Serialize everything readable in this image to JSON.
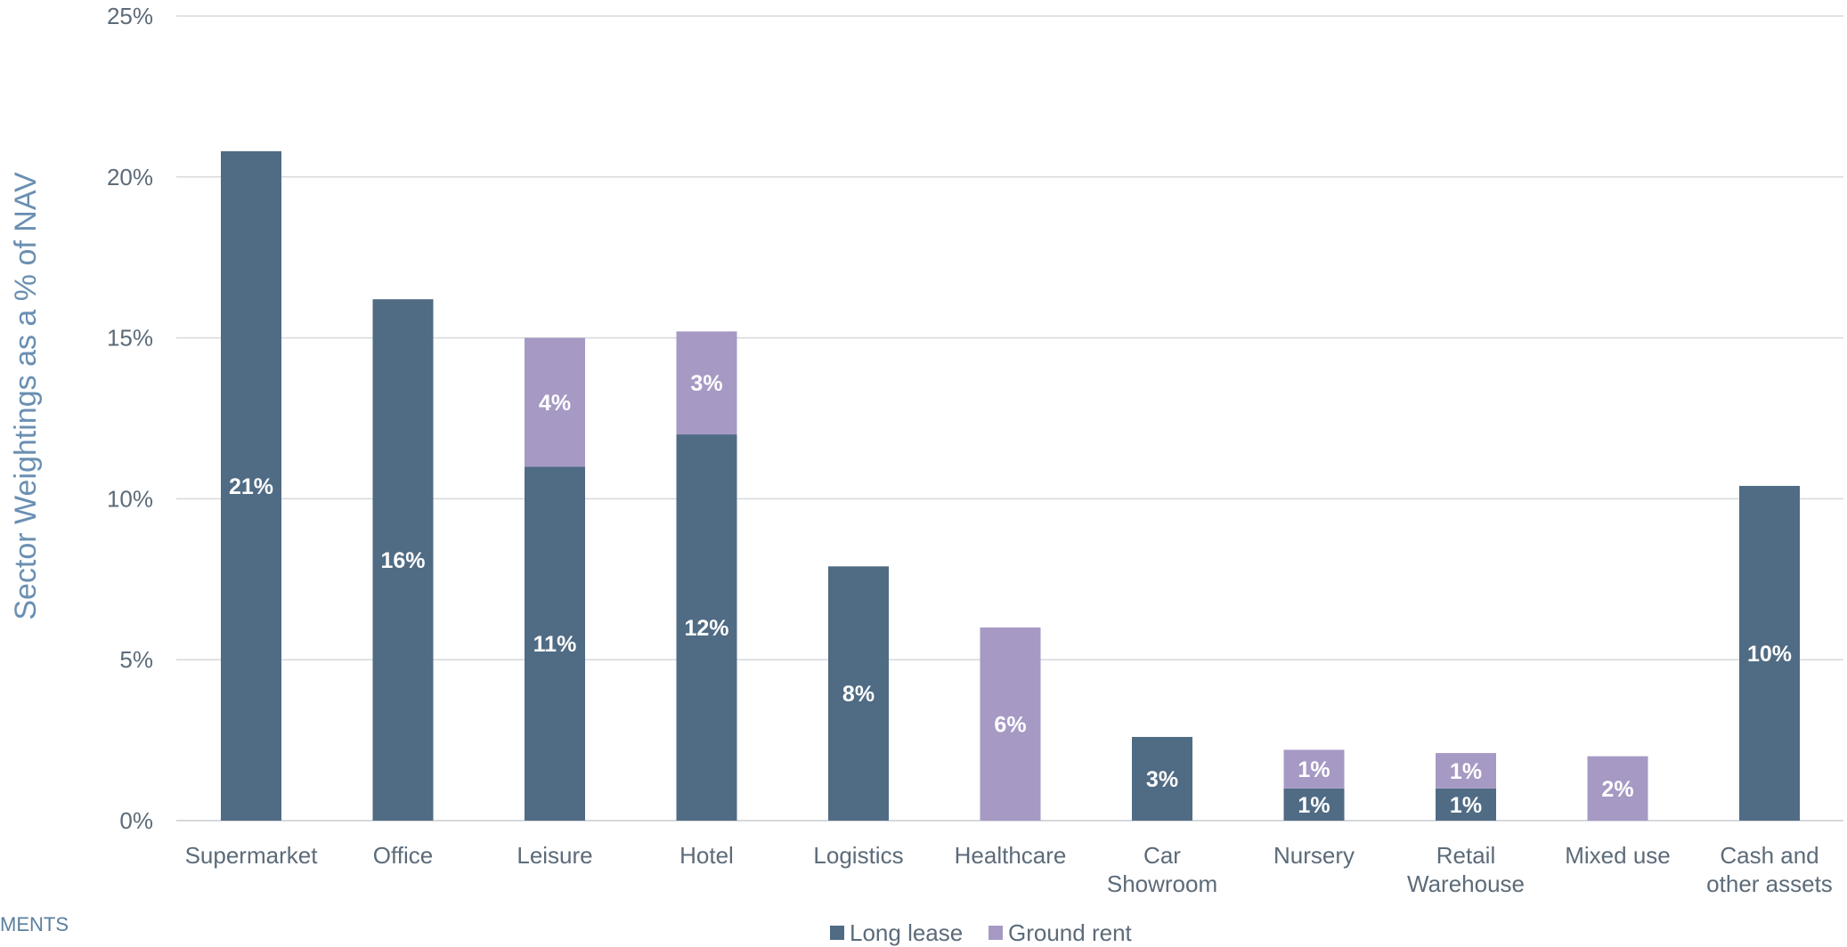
{
  "side_note": "MENTS",
  "colors": {
    "long_lease": "#506b84",
    "ground_rent": "#a699c4",
    "axis_text": "#5c6b79",
    "ylabel_text": "#6a8fb2",
    "grid": "#d6d9dc",
    "data_label": "#ffffff"
  },
  "chart_data": {
    "type": "bar",
    "stacked": true,
    "ylabel": "Sector Weightings as a % of NAV",
    "xlabel": "",
    "ylim": [
      0,
      25
    ],
    "yticks": [
      {
        "value": 0,
        "label": "0%"
      },
      {
        "value": 5,
        "label": "5%"
      },
      {
        "value": 10,
        "label": "10%"
      },
      {
        "value": 15,
        "label": "15%"
      },
      {
        "value": 20,
        "label": "20%"
      },
      {
        "value": 25,
        "label": "25%"
      }
    ],
    "grid": true,
    "legend_position": "bottom",
    "categories": [
      "Supermarket",
      "Office",
      "Leisure",
      "Hotel",
      "Logistics",
      "Healthcare",
      "Car Showroom",
      "Nursery",
      "Retail Warehouse",
      "Mixed use",
      "Cash and other assets"
    ],
    "category_lines": [
      [
        "Supermarket"
      ],
      [
        "Office"
      ],
      [
        "Leisure"
      ],
      [
        "Hotel"
      ],
      [
        "Logistics"
      ],
      [
        "Healthcare"
      ],
      [
        "Car",
        "Showroom"
      ],
      [
        "Nursery"
      ],
      [
        "Retail",
        "Warehouse"
      ],
      [
        "Mixed use"
      ],
      [
        "Cash and",
        "other assets"
      ]
    ],
    "series": [
      {
        "name": "Long lease",
        "color_key": "long_lease",
        "values": [
          20.8,
          16.2,
          11.0,
          12.0,
          7.9,
          0,
          2.6,
          1.0,
          1.0,
          0,
          10.4
        ],
        "labels": [
          "21%",
          "16%",
          "11%",
          "12%",
          "8%",
          "",
          "3%",
          "1%",
          "1%",
          "",
          "10%"
        ]
      },
      {
        "name": "Ground rent",
        "color_key": "ground_rent",
        "values": [
          0,
          0,
          4.0,
          3.2,
          0,
          6.0,
          0,
          1.2,
          1.1,
          2.0,
          0
        ],
        "labels": [
          "",
          "",
          "4%",
          "3%",
          "",
          "6%",
          "",
          "1%",
          "1%",
          "2%",
          ""
        ]
      }
    ]
  }
}
